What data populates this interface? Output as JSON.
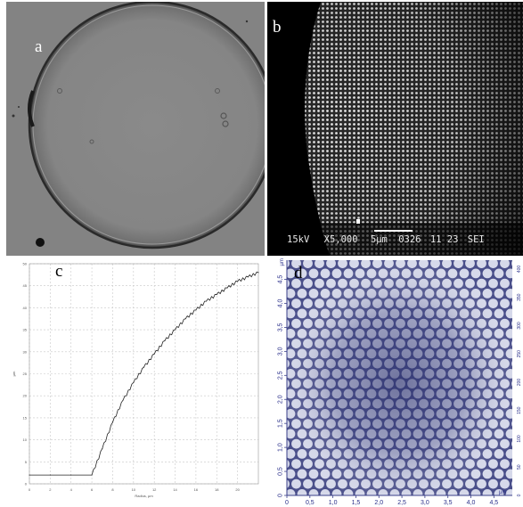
{
  "figure": {
    "panel_a": {
      "label": "a"
    },
    "panel_b": {
      "label": "b",
      "sem_info": {
        "voltage": "15kV",
        "magnification": "X5,000",
        "scale": "5µm",
        "code": "0326",
        "date": "11 23",
        "detector": "SEI"
      }
    },
    "panel_c": {
      "label": "c",
      "xlabel": "Radius, µm",
      "ylabel": "µm",
      "x_ticks": [
        "0",
        "2",
        "4",
        "6",
        "8",
        "10",
        "12",
        "14",
        "16",
        "18",
        "20"
      ],
      "y_ticks": [
        "0",
        "5",
        "10",
        "15",
        "20",
        "25",
        "30",
        "35",
        "40",
        "45",
        "50"
      ]
    },
    "panel_d": {
      "label": "d",
      "axis_unit": "µm",
      "x_ticks": [
        "0",
        "0,5",
        "1,0",
        "1,5",
        "2,0",
        "2,5",
        "3,0",
        "3,5",
        "4,0",
        "4,5"
      ],
      "y_ticks": [
        "0",
        "0,5",
        "1,0",
        "1,5",
        "2,0",
        "2,5",
        "3,0",
        "3,5",
        "4,0",
        "4,5"
      ],
      "colorbar_ticks": [
        "0",
        "50",
        "100",
        "150",
        "200",
        "250",
        "300",
        "350",
        "400"
      ]
    }
  },
  "chart_data": {
    "type": "line",
    "title": "",
    "xlabel": "Radius, µm",
    "ylabel": "µm",
    "xlim": [
      0,
      22
    ],
    "ylim": [
      0,
      50
    ],
    "grid": true,
    "series": [
      {
        "x": [
          0,
          2,
          4,
          6,
          7,
          8,
          9,
          10,
          11,
          12,
          13,
          14,
          15,
          16,
          17,
          18,
          19,
          20,
          21,
          22
        ],
        "y": [
          2,
          2,
          2,
          2,
          8,
          14,
          19,
          23,
          26.5,
          29.5,
          32.5,
          35,
          37.5,
          39.5,
          41.5,
          43,
          44.5,
          46,
          47,
          48
        ]
      }
    ]
  }
}
